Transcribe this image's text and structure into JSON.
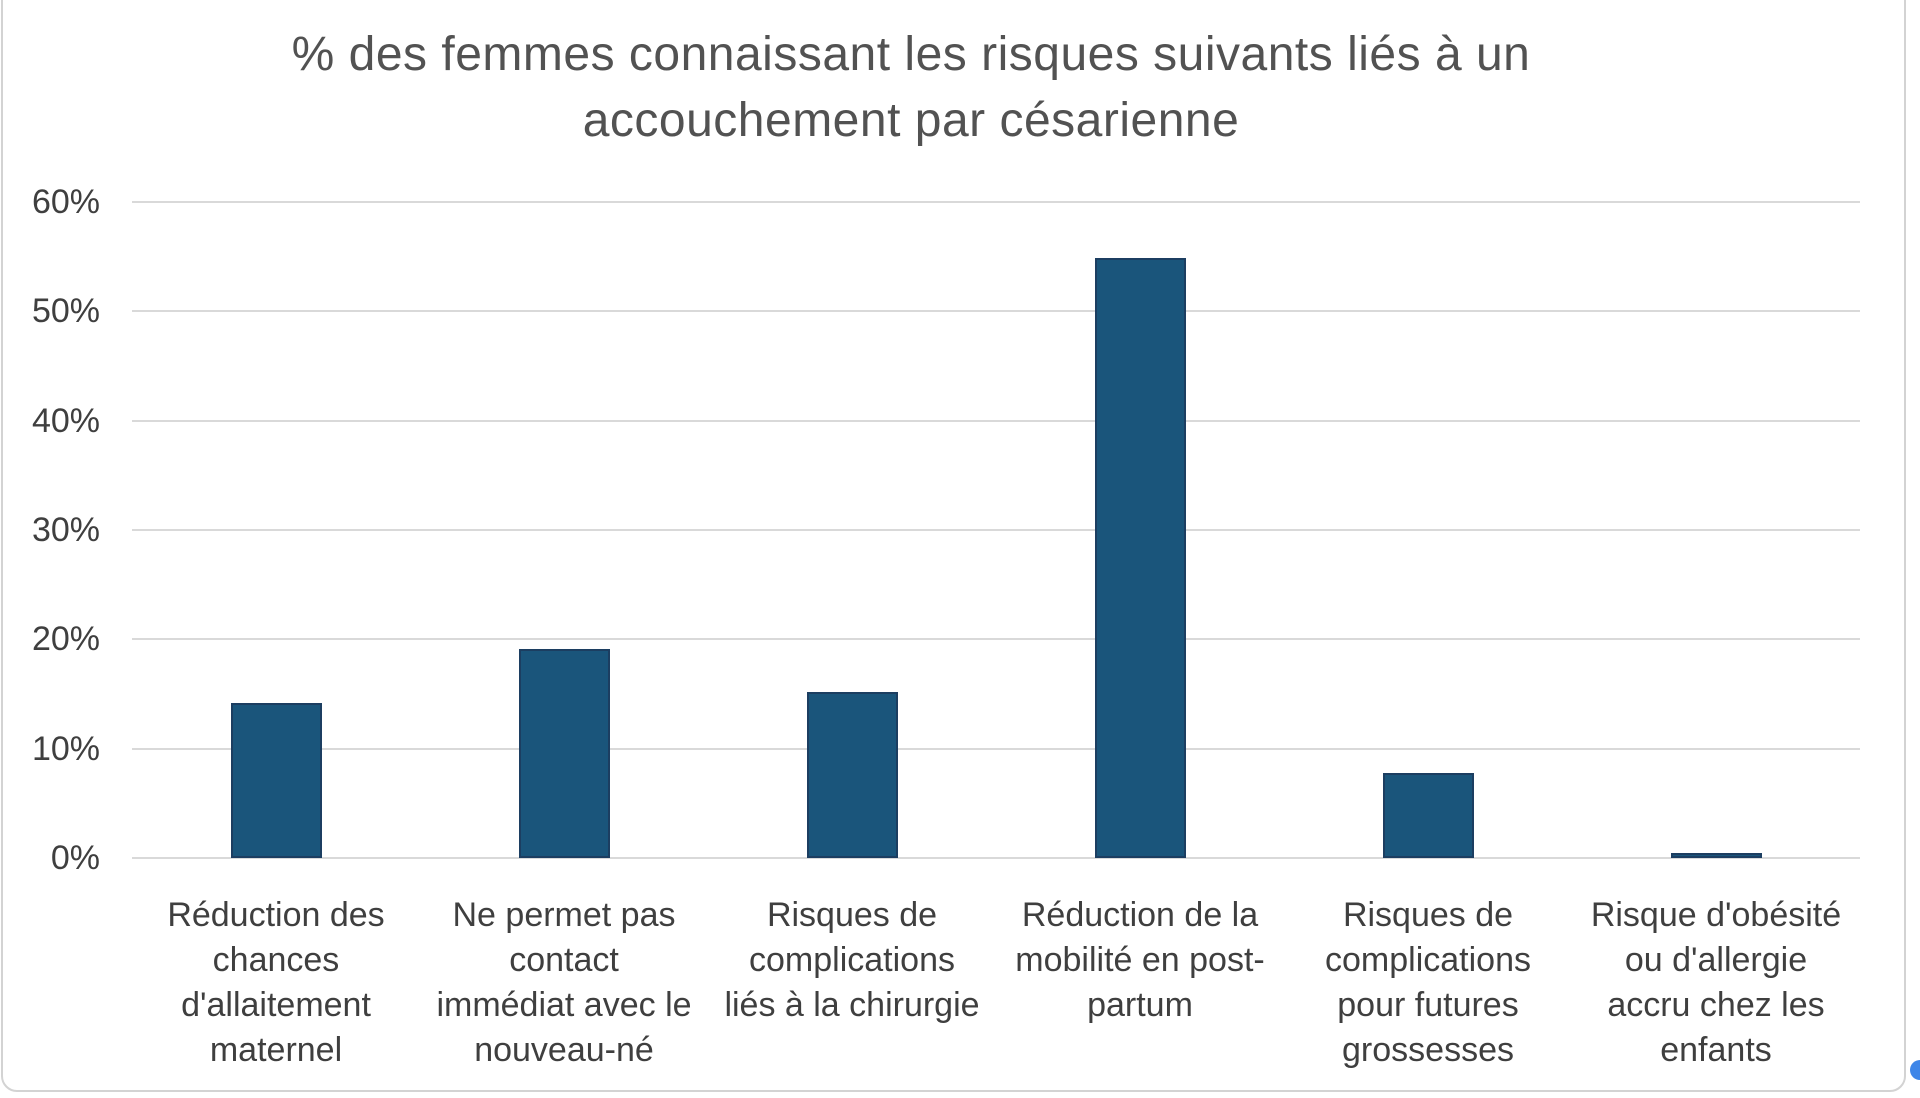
{
  "chart_data": {
    "type": "bar",
    "title": "% des femmes connaissant les risques suivants liés à un accouchement par césarienne",
    "title_lines": [
      "% des femmes connaissant les risques suivants liés à un",
      "accouchement par césarienne"
    ],
    "categories": [
      "Réduction des chances d'allaitement maternel",
      "Ne permet pas contact immédiat avec le nouveau-né",
      "Risques de complications liés à la chirurgie",
      "Réduction de la mobilité en post-partum",
      "Risques de complications pour futures grossesses",
      "Risque d'obésité ou d'allergie accru chez les enfants"
    ],
    "category_lines": [
      [
        "Réduction des",
        "chances",
        "d'allaitement",
        "maternel"
      ],
      [
        "Ne permet pas",
        "contact",
        "immédiat avec le",
        "nouveau-né"
      ],
      [
        "Risques de",
        "complications",
        "liés à la chirurgie"
      ],
      [
        "Réduction de la",
        "mobilité en post-",
        "partum"
      ],
      [
        "Risques de",
        "complications",
        "pour futures",
        "grossesses"
      ],
      [
        "Risque d'obésité",
        "ou d'allergie",
        "accru chez les",
        "enfants"
      ]
    ],
    "values": [
      14.2,
      19.1,
      15.2,
      54.9,
      7.8,
      0.5
    ],
    "value_unit": "%",
    "xlabel": "",
    "ylabel": "",
    "ylim": [
      0,
      60
    ],
    "ytick_step": 10,
    "ytick_labels": [
      "0%",
      "10%",
      "20%",
      "30%",
      "40%",
      "50%",
      "60%"
    ],
    "grid": true,
    "legend_position": "none",
    "bar_fill_color": "#1a557b",
    "bar_border_color": "#1c3e61",
    "gridline_color": "#d9d9d9",
    "axis_text_color": "#3f3f3f",
    "title_color": "#525252",
    "frame_border_color": "#d3d3d3",
    "selection_handle_color": "#3e86e8"
  }
}
